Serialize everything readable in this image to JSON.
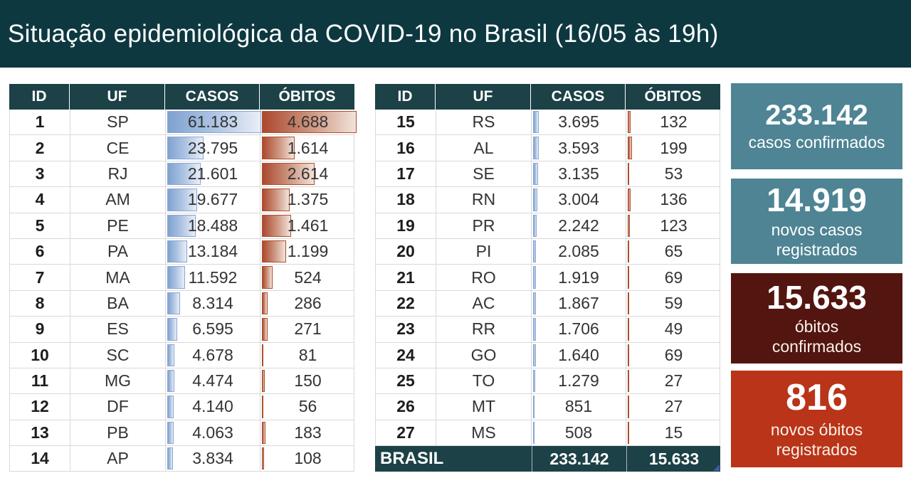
{
  "title": "Situação epidemiológica da COVID-19 no Brasil (16/05 às 19h)",
  "colors": {
    "banner": "#0d3840",
    "table-header": "#1c4147",
    "card-teal": "#4e8494",
    "card-maroon": "#53150f",
    "card-red": "#b93418",
    "bar-blue": "#7fa2d0",
    "bar-blue-border": "#89a6d2",
    "bar-red": "#ab492e",
    "bar-red-border": "#ad4f2d",
    "grid-line": "#d9d9d9"
  },
  "chart_data": {
    "type": "table",
    "title": "Situação epidemiológica da COVID-19 no Brasil (16/05 às 19h)",
    "columns": [
      "ID",
      "UF",
      "CASOS",
      "ÓBITOS"
    ],
    "rows": [
      [
        1,
        "SP",
        61183,
        4688
      ],
      [
        2,
        "CE",
        23795,
        1614
      ],
      [
        3,
        "RJ",
        21601,
        2614
      ],
      [
        4,
        "AM",
        19677,
        1375
      ],
      [
        5,
        "PE",
        18488,
        1461
      ],
      [
        6,
        "PA",
        13184,
        1199
      ],
      [
        7,
        "MA",
        11592,
        524
      ],
      [
        8,
        "BA",
        8314,
        286
      ],
      [
        9,
        "ES",
        6595,
        271
      ],
      [
        10,
        "SC",
        4678,
        81
      ],
      [
        11,
        "MG",
        4474,
        150
      ],
      [
        12,
        "DF",
        4140,
        56
      ],
      [
        13,
        "PB",
        4063,
        183
      ],
      [
        14,
        "AP",
        3834,
        108
      ],
      [
        15,
        "RS",
        3695,
        132
      ],
      [
        16,
        "AL",
        3593,
        199
      ],
      [
        17,
        "SE",
        3135,
        53
      ],
      [
        18,
        "RN",
        3004,
        136
      ],
      [
        19,
        "PR",
        2242,
        123
      ],
      [
        20,
        "PI",
        2085,
        65
      ],
      [
        21,
        "RO",
        1919,
        69
      ],
      [
        22,
        "AC",
        1867,
        59
      ],
      [
        23,
        "RR",
        1706,
        49
      ],
      [
        24,
        "GO",
        1640,
        69
      ],
      [
        25,
        "TO",
        1279,
        27
      ],
      [
        26,
        "MT",
        851,
        27
      ],
      [
        27,
        "MS",
        508,
        15
      ]
    ],
    "databar_max": {
      "casos": 61183,
      "obitos": 4688
    },
    "totals": {
      "label": "BRASIL",
      "casos": 233142,
      "obitos": 15633,
      "novos_casos": 14919,
      "novos_obitos": 816
    },
    "layout_hint": "two side-by-side tables, rows 1-14 left, rows 15-27 + BRASIL total right, gradient data bars scaled to column max"
  },
  "total_row": {
    "label": "BRASIL",
    "casos": "233.142",
    "obitos": "15.633"
  },
  "cards": [
    {
      "value": "233.142",
      "label": "casos confirmados"
    },
    {
      "value": "14.919",
      "label": "novos casos\nregistrados"
    },
    {
      "value": "15.633",
      "label": "óbitos\nconfirmados"
    },
    {
      "value": "816",
      "label": "novos óbitos\nregistrados"
    }
  ]
}
